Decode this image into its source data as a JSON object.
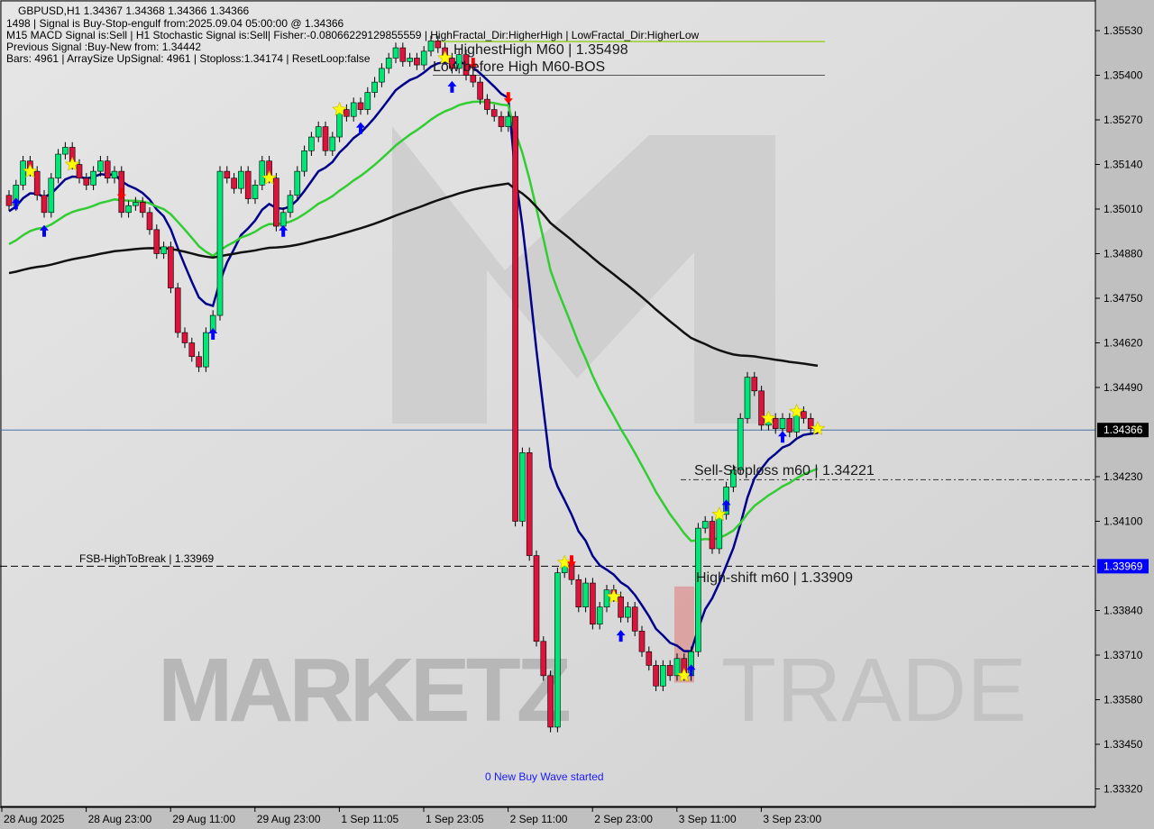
{
  "header": {
    "symbol_line": "GBPUSD,H1  1.34367 1.34368 1.34366 1.34366",
    "signal_line": "1498 | Signal is Buy-Stop-engulf from:2025.09.04 05:00:00 @ 1.34366",
    "indicators_line": "M15 MACD Signal is:Sell | H1 Stochastic Signal is:Sell| Fisher:-0.08066229129855559 | HighFractal_Dir:HigherHigh | LowFractal_Dir:HigherLow",
    "previous_line": "Previous Signal :Buy-New from: 1.34442",
    "bars_line": "Bars: 4961 | ArraySize UpSignal: 4961 | Stoploss:1.34174 | ResetLoop:false"
  },
  "annotations": {
    "highest_high": "HighestHigh   M60 | 1.35498",
    "low_before_high": "Low before High   M60-BOS",
    "sell_stoploss": "Sell-Stoploss m60 | 1.34221",
    "high_shift": "High-shift m60 | 1.33909",
    "fsb": "FSB-HighToBreak | 1.33969",
    "buy_wave": "0 New Buy Wave started"
  },
  "watermark": {
    "left": "MARKETZ",
    "right": "TRADE"
  },
  "chart_data": {
    "type": "candlestick",
    "symbol": "GBPUSD",
    "timeframe": "H1",
    "ylim": [
      1.3326,
      1.356
    ],
    "y_ticks": [
      "1.35530",
      "1.35400",
      "1.35270",
      "1.35140",
      "1.35010",
      "1.34880",
      "1.34750",
      "1.34620",
      "1.34490",
      "1.34230",
      "1.34100",
      "1.33840",
      "1.33710",
      "1.33580",
      "1.33450",
      "1.33320"
    ],
    "current_price": {
      "value": 1.34366,
      "label": "1.34366"
    },
    "fsb_price": {
      "value": 1.33969,
      "label": "1.33969"
    },
    "highest_high": 1.35498,
    "low_before_high": 1.354,
    "sell_stoploss": 1.34221,
    "x_ticks": [
      {
        "i": 0,
        "label": "28 Aug 2025"
      },
      {
        "i": 12,
        "label": "28 Aug 23:00"
      },
      {
        "i": 24,
        "label": "29 Aug 11:00"
      },
      {
        "i": 36,
        "label": "29 Aug 23:00"
      },
      {
        "i": 48,
        "label": "1 Sep 11:05"
      },
      {
        "i": 60,
        "label": "1 Sep 23:05"
      },
      {
        "i": 72,
        "label": "2 Sep 11:00"
      },
      {
        "i": 84,
        "label": "2 Sep 23:00"
      },
      {
        "i": 96,
        "label": "3 Sep 11:00"
      },
      {
        "i": 108,
        "label": "3 Sep 23:00"
      }
    ],
    "closes": [
      1.3502,
      1.3508,
      1.3515,
      1.3512,
      1.3505,
      1.35,
      1.351,
      1.3517,
      1.3519,
      1.3514,
      1.351,
      1.3508,
      1.3512,
      1.3515,
      1.351,
      1.3512,
      1.35,
      1.3502,
      1.3503,
      1.35,
      1.3495,
      1.3488,
      1.349,
      1.3478,
      1.3465,
      1.3462,
      1.3458,
      1.3455,
      1.3465,
      1.347,
      1.3512,
      1.351,
      1.3507,
      1.3512,
      1.3504,
      1.3508,
      1.3515,
      1.351,
      1.3496,
      1.35,
      1.3505,
      1.3512,
      1.3518,
      1.3522,
      1.3525,
      1.3518,
      1.3522,
      1.353,
      1.3528,
      1.3532,
      1.353,
      1.3535,
      1.3538,
      1.3542,
      1.3545,
      1.3548,
      1.3544,
      1.3545,
      1.3543,
      1.3547,
      1.355,
      1.3548,
      1.3545,
      1.3542,
      1.3546,
      1.354,
      1.3538,
      1.3533,
      1.353,
      1.3528,
      1.3525,
      1.3528,
      1.341,
      1.343,
      1.34,
      1.3375,
      1.3365,
      1.335,
      1.3395,
      1.3398,
      1.3393,
      1.3385,
      1.3392,
      1.338,
      1.3385,
      1.339,
      1.3388,
      1.3382,
      1.3385,
      1.3378,
      1.3372,
      1.3368,
      1.3362,
      1.3368,
      1.3365,
      1.337,
      1.3365,
      1.3372,
      1.3408,
      1.341,
      1.3402,
      1.3412,
      1.342,
      1.3425,
      1.344,
      1.3452,
      1.3448,
      1.3438,
      1.344,
      1.3437,
      1.344,
      1.3436,
      1.3442,
      1.344,
      1.3437,
      1.3437
    ],
    "markers": [
      {
        "i": 1,
        "type": "buy-arrow"
      },
      {
        "i": 5,
        "type": "buy-arrow"
      },
      {
        "i": 3,
        "type": "star"
      },
      {
        "i": 9,
        "type": "star"
      },
      {
        "i": 16,
        "type": "sell-arrow"
      },
      {
        "i": 29,
        "type": "buy-arrow"
      },
      {
        "i": 37,
        "type": "star"
      },
      {
        "i": 39,
        "type": "buy-arrow"
      },
      {
        "i": 47,
        "type": "star"
      },
      {
        "i": 50,
        "type": "buy-arrow"
      },
      {
        "i": 62,
        "type": "star"
      },
      {
        "i": 63,
        "type": "buy-arrow"
      },
      {
        "i": 66,
        "type": "sell-arrow"
      },
      {
        "i": 71,
        "type": "sell-arrow"
      },
      {
        "i": 79,
        "type": "star"
      },
      {
        "i": 80,
        "type": "sell-arrow"
      },
      {
        "i": 86,
        "type": "star"
      },
      {
        "i": 87,
        "type": "buy-arrow"
      },
      {
        "i": 96,
        "type": "star"
      },
      {
        "i": 97,
        "type": "buy-arrow"
      },
      {
        "i": 101,
        "type": "star"
      },
      {
        "i": 102,
        "type": "buy-arrow"
      },
      {
        "i": 108,
        "type": "star"
      },
      {
        "i": 110,
        "type": "buy-arrow"
      },
      {
        "i": 112,
        "type": "star"
      },
      {
        "i": 115,
        "type": "star"
      }
    ],
    "colors": {
      "bull": "#00e676",
      "bear": "#dc143c",
      "fast_ma": "#00008b",
      "mid_ma": "#32cd32",
      "slow_ma": "#111111",
      "highest_line": "#9acd32",
      "current_line": "#4a6fa5",
      "fsb_line": "#000000",
      "fsb_tag": "#0000ff"
    }
  }
}
